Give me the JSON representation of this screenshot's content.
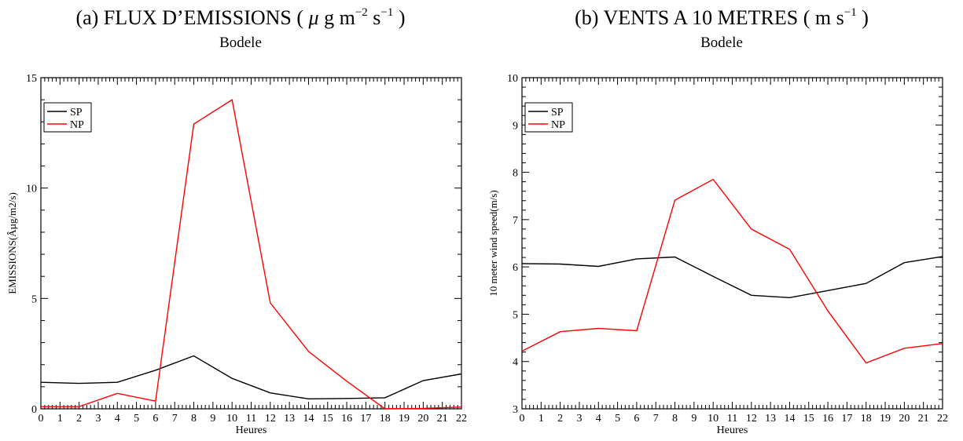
{
  "chart_data": [
    {
      "type": "line",
      "panel_title": {
        "prefix": "(a) FLUX D’EMISSIONS (",
        "mu": "μ",
        "g": " g m",
        "exp1": "−2",
        "s": " s",
        "exp2": "−1",
        "suffix": " )"
      },
      "subtitle": "Bodele",
      "xlabel": "Heures",
      "ylabel": "EMISSIONS(Âµg/m2/s)",
      "xlim": [
        0,
        22
      ],
      "ylim": [
        0,
        15
      ],
      "xticks": [
        0,
        1,
        2,
        3,
        4,
        5,
        6,
        7,
        8,
        9,
        10,
        11,
        12,
        13,
        14,
        15,
        16,
        17,
        18,
        19,
        20,
        21,
        22
      ],
      "yticks": [
        0,
        5,
        10,
        15
      ],
      "legend_position": "top-left",
      "x": [
        0,
        2,
        4,
        6,
        8,
        10,
        12,
        14,
        16,
        18,
        20,
        22
      ],
      "series": [
        {
          "name": "SP",
          "color": "#000000",
          "values": [
            1.2,
            1.15,
            1.2,
            1.75,
            2.4,
            1.38,
            0.72,
            0.45,
            0.47,
            0.5,
            1.28,
            1.58
          ]
        },
        {
          "name": "NP",
          "color": "#ff0000",
          "values": [
            0.1,
            0.1,
            0.7,
            0.35,
            12.9,
            14.0,
            4.8,
            2.6,
            1.25,
            0.0,
            0.02,
            0.08
          ]
        }
      ]
    },
    {
      "type": "line",
      "panel_title": {
        "prefix": "(b) VENTS A 10 METRES (",
        "mu": "",
        "g": " m s",
        "exp1": "−1",
        "s": "",
        "exp2": "",
        "suffix": " )"
      },
      "subtitle": "Bodele",
      "xlabel": "Heures",
      "ylabel": "10 meter wind speed(m/s)",
      "xlim": [
        0,
        22
      ],
      "ylim": [
        3,
        10
      ],
      "xticks": [
        0,
        1,
        2,
        3,
        4,
        5,
        6,
        7,
        8,
        9,
        10,
        11,
        12,
        13,
        14,
        15,
        16,
        17,
        18,
        19,
        20,
        21,
        22
      ],
      "yticks": [
        3,
        4,
        5,
        6,
        7,
        8,
        9,
        10
      ],
      "legend_position": "top-left",
      "x": [
        0,
        2,
        4,
        6,
        8,
        10,
        12,
        14,
        16,
        18,
        20,
        22
      ],
      "series": [
        {
          "name": "SP",
          "color": "#000000",
          "values": [
            6.07,
            6.06,
            6.01,
            6.17,
            6.21,
            5.8,
            5.4,
            5.35,
            5.5,
            5.65,
            6.09,
            6.22
          ]
        },
        {
          "name": "NP",
          "color": "#ff0000",
          "values": [
            4.22,
            4.63,
            4.7,
            4.65,
            7.41,
            7.85,
            6.8,
            6.37,
            5.07,
            3.97,
            4.28,
            4.38
          ]
        }
      ]
    }
  ]
}
